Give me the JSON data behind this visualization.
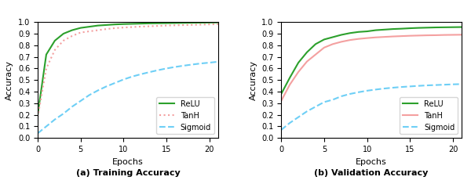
{
  "epochs": [
    0,
    1,
    2,
    3,
    4,
    5,
    6,
    7,
    8,
    9,
    10,
    11,
    12,
    13,
    14,
    15,
    16,
    17,
    18,
    19,
    20,
    21
  ],
  "train_relu": [
    0.2,
    0.72,
    0.84,
    0.9,
    0.93,
    0.95,
    0.96,
    0.97,
    0.975,
    0.98,
    0.983,
    0.985,
    0.987,
    0.989,
    0.99,
    0.991,
    0.992,
    0.993,
    0.994,
    0.995,
    0.996,
    0.997
  ],
  "train_tanh": [
    0.18,
    0.6,
    0.76,
    0.84,
    0.88,
    0.91,
    0.92,
    0.93,
    0.94,
    0.948,
    0.953,
    0.957,
    0.961,
    0.964,
    0.967,
    0.97,
    0.972,
    0.974,
    0.976,
    0.978,
    0.98,
    0.982
  ],
  "train_sigmoid": [
    0.04,
    0.1,
    0.16,
    0.21,
    0.27,
    0.32,
    0.37,
    0.41,
    0.445,
    0.475,
    0.505,
    0.53,
    0.55,
    0.568,
    0.585,
    0.6,
    0.613,
    0.624,
    0.634,
    0.643,
    0.65,
    0.658
  ],
  "val_relu": [
    0.38,
    0.52,
    0.65,
    0.74,
    0.81,
    0.85,
    0.87,
    0.89,
    0.905,
    0.915,
    0.92,
    0.93,
    0.935,
    0.94,
    0.943,
    0.947,
    0.95,
    0.952,
    0.954,
    0.955,
    0.956,
    0.957
  ],
  "val_tanh": [
    0.32,
    0.46,
    0.57,
    0.66,
    0.72,
    0.78,
    0.81,
    0.83,
    0.845,
    0.855,
    0.862,
    0.868,
    0.872,
    0.876,
    0.879,
    0.882,
    0.884,
    0.886,
    0.887,
    0.889,
    0.89,
    0.891
  ],
  "val_sigmoid": [
    0.07,
    0.13,
    0.18,
    0.23,
    0.27,
    0.31,
    0.33,
    0.36,
    0.38,
    0.395,
    0.408,
    0.418,
    0.427,
    0.434,
    0.44,
    0.445,
    0.45,
    0.454,
    0.457,
    0.46,
    0.463,
    0.465
  ],
  "relu_color": "#2ca02c",
  "tanh_color": "#f4a0a0",
  "sigmoid_color": "#6ecff6",
  "val_tanh_color": "#f4a0a0",
  "xlabel": "Epochs",
  "ylabel": "Accuracy",
  "title_a": "(a) Training Accuracy",
  "title_b": "(b) Validation Accuracy",
  "legend_relu": "ReLU",
  "legend_tanh": "TanH",
  "legend_sigmoid": "Sigmoid",
  "xlim": [
    0,
    21
  ],
  "ylim": [
    0.0,
    1.0
  ],
  "yticks": [
    0.0,
    0.1,
    0.2,
    0.3,
    0.4,
    0.5,
    0.6,
    0.7,
    0.8,
    0.9,
    1.0
  ],
  "xticks": [
    0,
    5,
    10,
    15,
    20
  ],
  "linewidth": 1.5,
  "dotted_linewidth": 1.5
}
